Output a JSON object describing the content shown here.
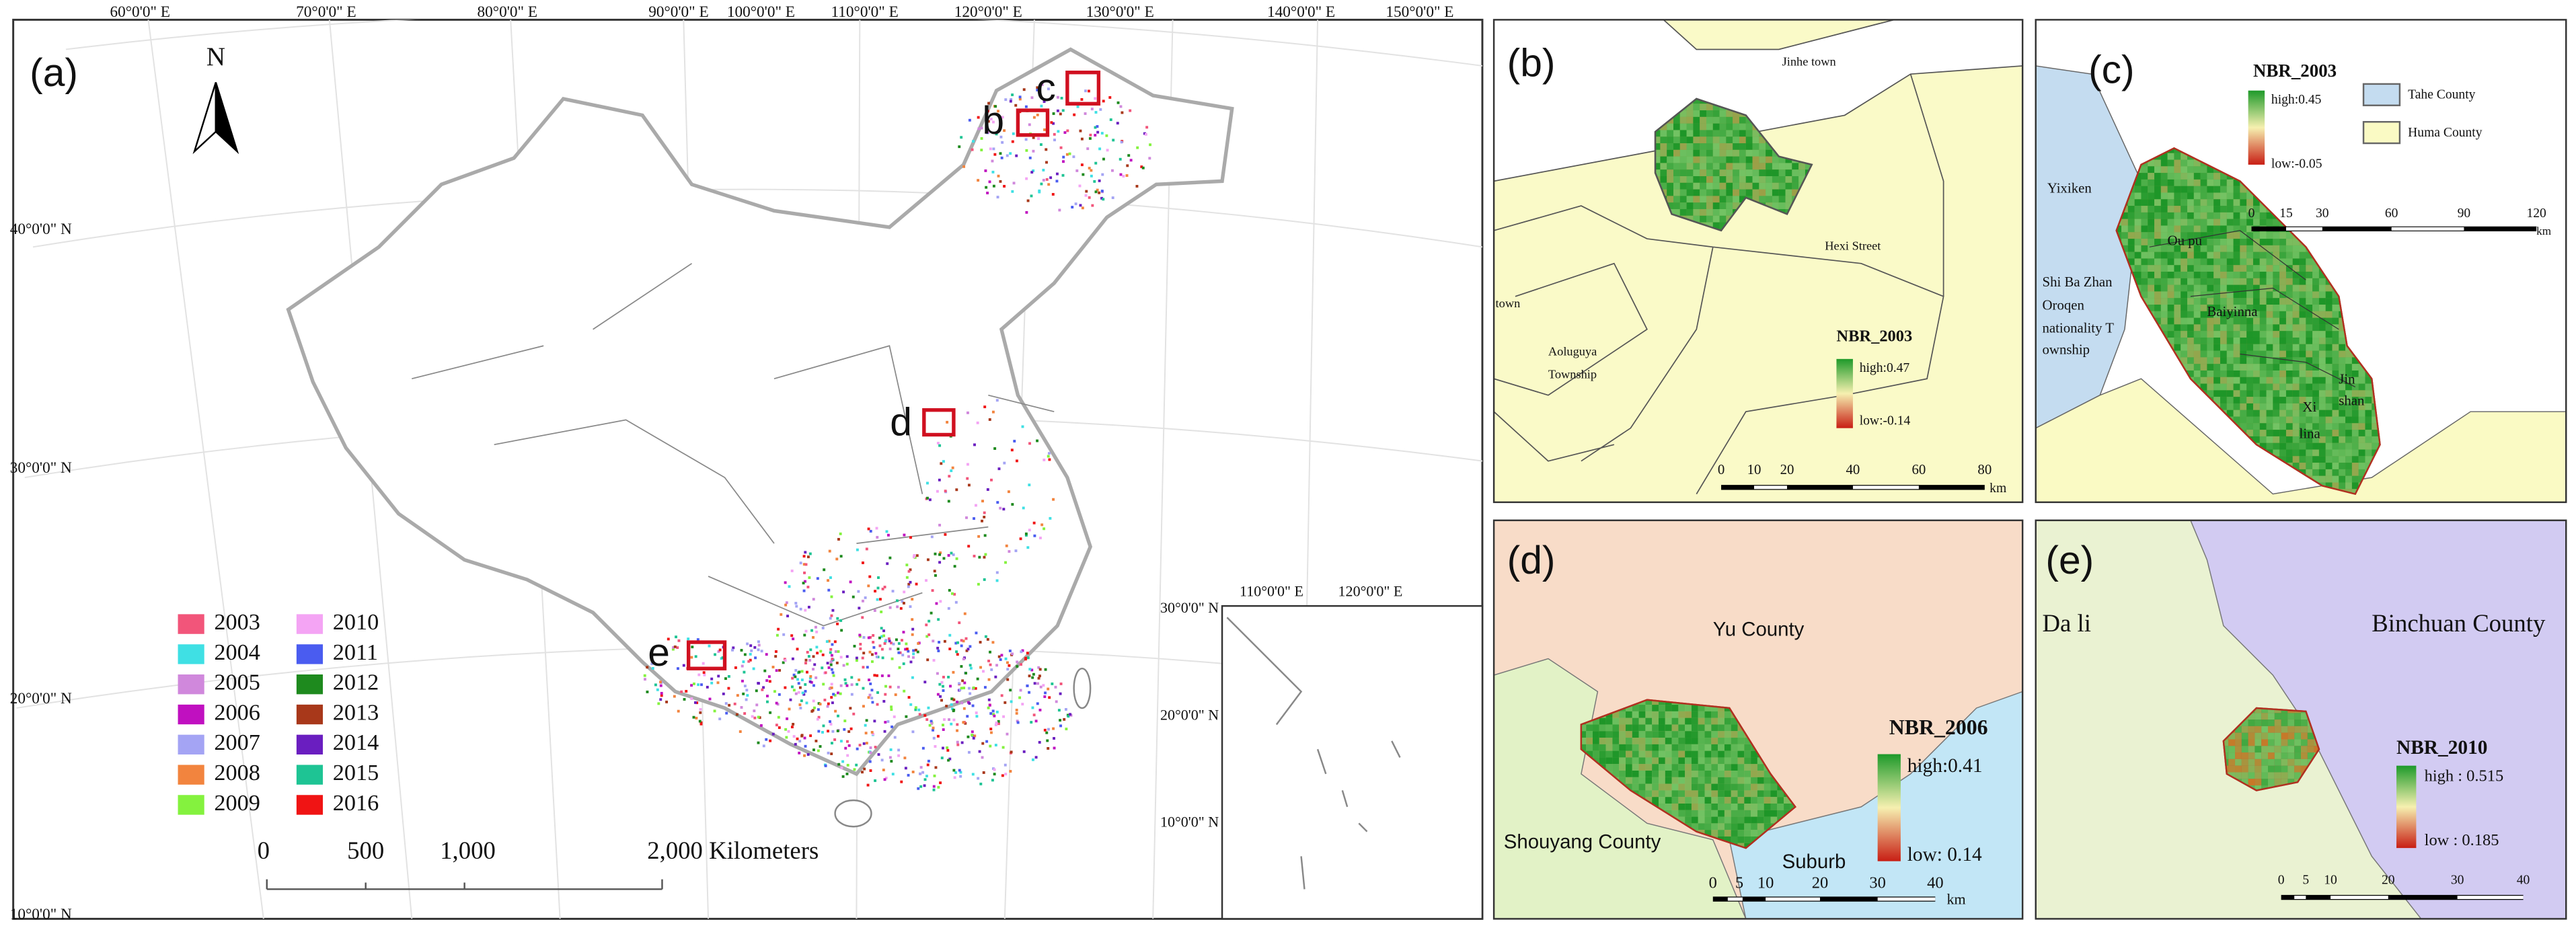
{
  "panel_a": {
    "label": "(a)",
    "north": "N",
    "lon_labels": [
      "60°0'0\" E",
      "70°0'0\" E",
      "80°0'0\" E",
      "90°0'0\" E",
      "100°0'0\" E",
      "110°0'0\" E",
      "120°0'0\" E",
      "130°0'0\" E",
      "140°0'0\" E",
      "150°0'0\" E"
    ],
    "lat_labels": [
      "40°0'0\" N",
      "30°0'0\" N",
      "20°0'0\" N",
      "10°0'0\" N"
    ],
    "markers": [
      "b",
      "c",
      "d",
      "e"
    ],
    "legend": [
      {
        "year": "2003",
        "color": "#f2557a"
      },
      {
        "year": "2004",
        "color": "#3fe0e4"
      },
      {
        "year": "2005",
        "color": "#d088dc"
      },
      {
        "year": "2006",
        "color": "#c010c0"
      },
      {
        "year": "2007",
        "color": "#a4a4f4"
      },
      {
        "year": "2008",
        "color": "#f2843e"
      },
      {
        "year": "2009",
        "color": "#84f23e"
      },
      {
        "year": "2010",
        "color": "#f4a4f4"
      },
      {
        "year": "2011",
        "color": "#4a5cf0"
      },
      {
        "year": "2012",
        "color": "#1e8a1e"
      },
      {
        "year": "2013",
        "color": "#a8381a"
      },
      {
        "year": "2014",
        "color": "#6a1ec0"
      },
      {
        "year": "2015",
        "color": "#1ec494"
      },
      {
        "year": "2016",
        "color": "#f01414"
      }
    ],
    "scale_bar": [
      "0",
      "500",
      "1,000",
      "2,000 Kilometers"
    ],
    "inset": {
      "lon_labels": [
        "110°0'0\" E",
        "120°0'0\" E"
      ],
      "lat_labels": [
        "30°0'0\" N",
        "20°0'0\" N",
        "10°0'0\" N"
      ]
    }
  },
  "panel_b": {
    "label": "(b)",
    "places": [
      "Jinhe town",
      "Hexi Street",
      "town",
      "Aoluguya",
      "Township"
    ],
    "legend": {
      "title": "NBR_2003",
      "high": "high:0.47",
      "low": "low:-0.14"
    },
    "scale_bar": [
      "0",
      "10",
      "20",
      "40",
      "60",
      "80",
      "km"
    ]
  },
  "panel_c": {
    "label": "(c)",
    "legend": {
      "title": "NBR_2003",
      "high": "high:0.45",
      "low": "low:-0.05",
      "counties": [
        "Tahe County",
        "Huma County"
      ]
    },
    "scale_bar": [
      "0",
      "15",
      "30",
      "60",
      "90",
      "120",
      "km"
    ],
    "places": [
      "Yixiken",
      "Ou pu",
      "Shi Ba Zhan",
      "Oroqen",
      "nationality T",
      "ownship",
      "Baiyinna",
      "Jin",
      "shan",
      "Xi",
      "lina"
    ]
  },
  "panel_d": {
    "label": "(d)",
    "places": [
      "Yu County",
      "Shouyang County",
      "Suburb"
    ],
    "legend": {
      "title": "NBR_2006",
      "high": "high:0.41",
      "low": "low: 0.14"
    },
    "scale_bar": [
      "0",
      "5",
      "10",
      "20",
      "30",
      "40",
      "km"
    ]
  },
  "panel_e": {
    "label": "(e)",
    "places": [
      "Da li",
      "Binchuan County"
    ],
    "legend": {
      "title": "NBR_2010",
      "high": "high : 0.515",
      "low": "low : 0.185"
    },
    "scale_bar": [
      "0",
      "5",
      "10",
      "20",
      "30",
      "40"
    ]
  }
}
